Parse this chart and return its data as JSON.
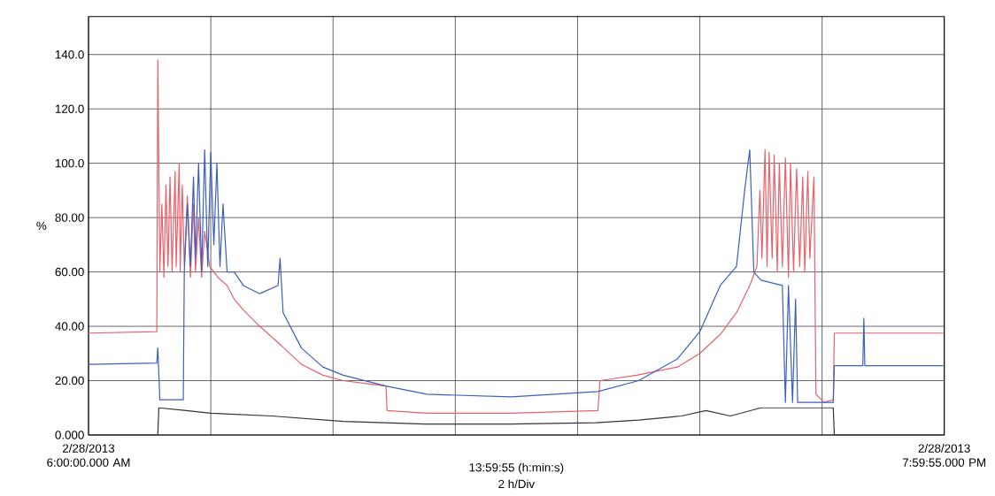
{
  "chart_data": {
    "type": "line",
    "xlabel": "13:59:55 (h:min:s)",
    "ylabel": "%",
    "annotations": [
      "2 h/Div"
    ],
    "xlim": [
      "2013-02-28T06:00",
      "2013-02-28T19:59:55"
    ],
    "ylim": [
      0,
      154
    ],
    "xticks": [
      {
        "value": "2013-02-28T06:00",
        "label": "2/28/2013 6:00:00.000 AM"
      },
      {
        "value": "2013-02-28T08:00",
        "label": null
      },
      {
        "value": "2013-02-28T10:00",
        "label": null
      },
      {
        "value": "2013-02-28T12:00",
        "label": null
      },
      {
        "value": "2013-02-28T14:00",
        "label": null
      },
      {
        "value": "2013-02-28T16:00",
        "label": null
      },
      {
        "value": "2013-02-28T18:00",
        "label": null
      },
      {
        "value": "2013-02-28T19:59:55",
        "label": "2/28/2013 7:59:55.000 PM"
      }
    ],
    "yticks": [
      {
        "value": 0,
        "label": "0.000"
      },
      {
        "value": 20,
        "label": "20.00"
      },
      {
        "value": 40,
        "label": "40.00"
      },
      {
        "value": 60,
        "label": "60.00"
      },
      {
        "value": 80,
        "label": "80.00"
      },
      {
        "value": 100,
        "label": "100.0"
      },
      {
        "value": 120,
        "label": "120.0"
      },
      {
        "value": 140,
        "label": "140.0"
      }
    ],
    "grid": true,
    "series": [
      {
        "color": "#333333",
        "x": [
          "2013-02-28T06:00",
          "2013-02-28T07:08",
          "2013-02-28T07:09",
          "2013-02-28T07:36",
          "2013-02-28T08:00",
          "2013-02-28T09:00",
          "2013-02-28T10:10",
          "2013-02-28T11:30",
          "2013-02-28T12:54",
          "2013-02-28T14:18",
          "2013-02-28T15:00",
          "2013-02-28T15:42",
          "2013-02-28T16:06",
          "2013-02-28T16:30",
          "2013-02-28T17:00",
          "2013-02-28T18:11",
          "2013-02-28T18:12",
          "2013-02-28T19:59"
        ],
        "values": [
          0,
          0,
          10,
          9,
          8,
          7,
          5,
          4,
          4,
          4.5,
          5.5,
          7,
          9,
          7,
          10,
          10,
          0,
          0
        ]
      },
      {
        "color": "#3a5fc0",
        "x": [
          "2013-02-28T06:00",
          "2013-02-28T07:07",
          "2013-02-28T07:08",
          "2013-02-28T07:10",
          "2013-02-28T07:33",
          "2013-02-28T07:34",
          "2013-02-28T07:37",
          "2013-02-28T07:40",
          "2013-02-28T07:43",
          "2013-02-28T07:45",
          "2013-02-28T07:48",
          "2013-02-28T07:51",
          "2013-02-28T07:54",
          "2013-02-28T07:57",
          "2013-02-28T08:00",
          "2013-02-28T08:03",
          "2013-02-28T08:06",
          "2013-02-28T08:09",
          "2013-02-28T08:12",
          "2013-02-28T08:16",
          "2013-02-28T08:23",
          "2013-02-28T08:32",
          "2013-02-28T08:48",
          "2013-02-28T09:06",
          "2013-02-28T09:08",
          "2013-02-28T09:11",
          "2013-02-28T09:29",
          "2013-02-28T09:50",
          "2013-02-28T10:10",
          "2013-02-28T10:52",
          "2013-02-28T11:32",
          "2013-02-28T12:55",
          "2013-02-28T14:20",
          "2013-02-28T15:00",
          "2013-02-28T15:38",
          "2013-02-28T16:00",
          "2013-02-28T16:20",
          "2013-02-28T16:36",
          "2013-02-28T16:44",
          "2013-02-28T16:49",
          "2013-02-28T16:53",
          "2013-02-28T17:00",
          "2013-02-28T17:21",
          "2013-02-28T17:24",
          "2013-02-28T17:27",
          "2013-02-28T17:31",
          "2013-02-28T17:34",
          "2013-02-28T17:36",
          "2013-02-28T18:11",
          "2013-02-28T18:12",
          "2013-02-28T18:40",
          "2013-02-28T18:41",
          "2013-02-28T18:42",
          "2013-02-28T19:59"
        ],
        "values": [
          26,
          26.5,
          32,
          13,
          13,
          60,
          85,
          62,
          95,
          65,
          100,
          60,
          105,
          62,
          104,
          70,
          100,
          62,
          85,
          60,
          60,
          55,
          52,
          55,
          65,
          45,
          32,
          25,
          22,
          18,
          15,
          14,
          16,
          20,
          28,
          38,
          55,
          62,
          90,
          105,
          60,
          57,
          55,
          12,
          55,
          12,
          50,
          12,
          12,
          25.5,
          25.5,
          43,
          25.5,
          25.5
        ]
      },
      {
        "color": "#e8606a",
        "x": [
          "2013-02-28T06:00",
          "2013-02-28T07:07",
          "2013-02-28T07:08",
          "2013-02-28T07:10",
          "2013-02-28T07:12",
          "2013-02-28T07:14",
          "2013-02-28T07:16",
          "2013-02-28T07:18",
          "2013-02-28T07:20",
          "2013-02-28T07:22",
          "2013-02-28T07:25",
          "2013-02-28T07:26",
          "2013-02-28T07:29",
          "2013-02-28T07:30",
          "2013-02-28T07:32",
          "2013-02-28T07:34",
          "2013-02-28T07:37",
          "2013-02-28T07:40",
          "2013-02-28T07:43",
          "2013-02-28T07:45",
          "2013-02-28T07:48",
          "2013-02-28T07:51",
          "2013-02-28T07:54",
          "2013-02-28T07:59",
          "2013-02-28T08:07",
          "2013-02-28T08:16",
          "2013-02-28T08:23",
          "2013-02-28T08:32",
          "2013-02-28T08:48",
          "2013-02-28T09:09",
          "2013-02-28T09:29",
          "2013-02-28T09:50",
          "2013-02-28T10:10",
          "2013-02-28T10:31",
          "2013-02-28T10:52",
          "2013-02-28T10:53",
          "2013-02-28T11:32",
          "2013-02-28T12:55",
          "2013-02-28T14:20",
          "2013-02-28T14:22",
          "2013-02-28T14:58",
          "2013-02-28T15:38",
          "2013-02-28T16:00",
          "2013-02-28T16:20",
          "2013-02-28T16:36",
          "2013-02-28T16:49",
          "2013-02-28T16:56",
          "2013-02-28T16:59",
          "2013-02-28T17:01",
          "2013-02-28T17:04",
          "2013-02-28T17:06",
          "2013-02-28T17:08",
          "2013-02-28T17:11",
          "2013-02-28T17:13",
          "2013-02-28T17:16",
          "2013-02-28T17:18",
          "2013-02-28T17:21",
          "2013-02-28T17:24",
          "2013-02-28T17:27",
          "2013-02-28T17:29",
          "2013-02-28T17:32",
          "2013-02-28T17:35",
          "2013-02-28T17:38",
          "2013-02-28T17:41",
          "2013-02-28T17:43",
          "2013-02-28T17:46",
          "2013-02-28T17:48",
          "2013-02-28T17:52",
          "2013-02-28T17:54",
          "2013-02-28T18:02",
          "2013-02-28T18:11",
          "2013-02-28T18:12",
          "2013-02-28T19:59"
        ],
        "values": [
          37.5,
          38,
          138,
          60,
          85,
          58,
          92,
          62,
          95,
          60,
          97,
          62,
          100,
          60,
          92,
          62,
          88,
          58,
          85,
          60,
          80,
          58,
          75,
          62,
          58,
          55,
          50,
          46,
          40,
          33,
          26,
          22,
          20,
          19,
          18,
          9,
          8,
          8,
          9,
          20,
          22,
          25,
          30,
          37,
          45,
          55,
          62,
          90,
          65,
          105,
          62,
          104,
          65,
          103,
          60,
          100,
          62,
          102,
          58,
          100,
          60,
          98,
          62,
          95,
          60,
          97,
          65,
          95,
          15,
          12,
          13,
          37.5,
          37.5
        ]
      }
    ]
  }
}
